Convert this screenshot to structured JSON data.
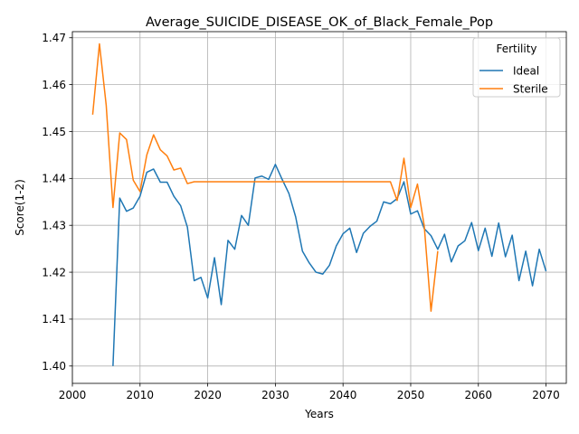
{
  "chart_data": {
    "type": "line",
    "title": "Average_SUICIDE_DISEASE_OK_of_Black_Female_Pop",
    "xlabel": "Years",
    "ylabel": "Score(1-2)",
    "xlim": [
      2000,
      2073
    ],
    "ylim": [
      1.3963,
      1.4713
    ],
    "xticks": [
      2000,
      2010,
      2020,
      2030,
      2040,
      2050,
      2060,
      2070
    ],
    "xtick_labels": [
      "2000",
      "2010",
      "2020",
      "2030",
      "2040",
      "2050",
      "2060",
      "2070"
    ],
    "yticks": [
      1.4,
      1.41,
      1.42,
      1.43,
      1.44,
      1.45,
      1.46,
      1.47
    ],
    "ytick_labels": [
      "1.40",
      "1.41",
      "1.42",
      "1.43",
      "1.44",
      "1.45",
      "1.46",
      "1.47"
    ],
    "grid": true,
    "legend": {
      "title": "Fertility",
      "position": "top-right"
    },
    "series": [
      {
        "name": "Ideal",
        "color": "#1f77b4",
        "x": [
          2006,
          2007,
          2008,
          2009,
          2010,
          2011,
          2012,
          2013,
          2014,
          2015,
          2016,
          2017,
          2018,
          2019,
          2020,
          2021,
          2022,
          2023,
          2024,
          2025,
          2026,
          2027,
          2028,
          2029,
          2030,
          2031,
          2032,
          2033,
          2034,
          2035,
          2036,
          2037,
          2038,
          2039,
          2040,
          2041,
          2042,
          2043,
          2044,
          2045,
          2046,
          2047,
          2048,
          2049,
          2050,
          2051,
          2052,
          2053,
          2054,
          2055,
          2056,
          2057,
          2058,
          2059,
          2060,
          2061,
          2062,
          2063,
          2064,
          2065,
          2066,
          2067,
          2068,
          2069,
          2070
        ],
        "y": [
          1.4,
          1.4358,
          1.433,
          1.4337,
          1.4362,
          1.4413,
          1.442,
          1.4392,
          1.4392,
          1.4362,
          1.4342,
          1.4296,
          1.4182,
          1.4189,
          1.4145,
          1.4231,
          1.4131,
          1.4268,
          1.4249,
          1.4321,
          1.43,
          1.4401,
          1.4405,
          1.4398,
          1.443,
          1.4398,
          1.4368,
          1.4318,
          1.4245,
          1.422,
          1.42,
          1.4196,
          1.4215,
          1.4256,
          1.4282,
          1.4294,
          1.4242,
          1.4283,
          1.4298,
          1.4309,
          1.435,
          1.4346,
          1.4357,
          1.4393,
          1.4324,
          1.4331,
          1.4293,
          1.4278,
          1.4249,
          1.4281,
          1.4222,
          1.4256,
          1.4267,
          1.4306,
          1.4246,
          1.4294,
          1.4234,
          1.4305,
          1.4233,
          1.4279,
          1.4182,
          1.4245,
          1.4171,
          1.4249,
          1.4202
        ]
      },
      {
        "name": "Sterile",
        "color": "#ff7f0e",
        "x": [
          2003,
          2004,
          2005,
          2006,
          2007,
          2008,
          2009,
          2010,
          2011,
          2012,
          2013,
          2014,
          2015,
          2016,
          2017,
          2018,
          2019,
          2020,
          2021,
          2022,
          2023,
          2024,
          2025,
          2026,
          2027,
          2028,
          2029,
          2030,
          2031,
          2032,
          2033,
          2034,
          2035,
          2036,
          2037,
          2038,
          2039,
          2040,
          2041,
          2042,
          2043,
          2044,
          2045,
          2046,
          2047,
          2048,
          2049,
          2050,
          2051,
          2052,
          2053,
          2054
        ],
        "y": [
          1.4536,
          1.4687,
          1.4556,
          1.4338,
          1.4497,
          1.4483,
          1.4396,
          1.4372,
          1.445,
          1.4493,
          1.4461,
          1.4448,
          1.4418,
          1.4422,
          1.4389,
          1.4393,
          1.4393,
          1.4393,
          1.4393,
          1.4393,
          1.4393,
          1.4393,
          1.4393,
          1.4393,
          1.4393,
          1.4393,
          1.4393,
          1.4393,
          1.4393,
          1.4393,
          1.4393,
          1.4393,
          1.4393,
          1.4393,
          1.4393,
          1.4393,
          1.4393,
          1.4393,
          1.4393,
          1.4393,
          1.4393,
          1.4393,
          1.4393,
          1.4393,
          1.4393,
          1.4353,
          1.4443,
          1.4338,
          1.4388,
          1.4299,
          1.4117,
          1.4245
        ]
      }
    ]
  }
}
